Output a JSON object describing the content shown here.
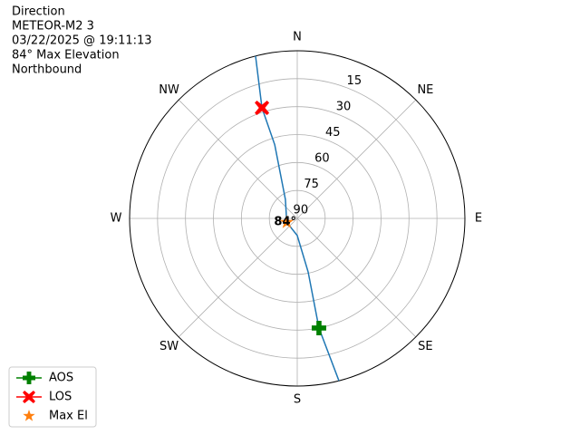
{
  "chart_data": {
    "type": "polar",
    "title": [
      "Direction",
      "METEOR-M2 3",
      "03/22/2025 @ 19:11:13",
      "84° Max Elevation",
      "Northbound"
    ],
    "xlim": [
      0,
      360
    ],
    "xticks": [
      {
        "value": 0,
        "label": "N"
      },
      {
        "value": 45,
        "label": "NE"
      },
      {
        "value": 90,
        "label": "E"
      },
      {
        "value": 135,
        "label": "SE"
      },
      {
        "value": 180,
        "label": "S"
      },
      {
        "value": 225,
        "label": "SW"
      },
      {
        "value": 270,
        "label": "W"
      },
      {
        "value": 315,
        "label": "NW"
      }
    ],
    "ylim": [
      90,
      0
    ],
    "yticks": [
      90,
      75,
      60,
      45,
      30,
      15
    ],
    "grid": true,
    "legend": "lower left",
    "series": [
      {
        "color": "#1f77b4",
        "marker": "none",
        "x": [
          165.6,
          168.8,
          168.5,
          180,
          250,
          328,
          343,
          342.3,
          345.6
        ],
        "values": [
          0,
          30,
          60.7,
          80.8,
          84,
          78,
          48.7,
          27.7,
          0
        ]
      },
      {
        "name": "AOS",
        "color": "#008000",
        "marker": "plus",
        "x": [
          168.8
        ],
        "values": [
          30
        ]
      },
      {
        "name": "LOS",
        "color": "#ff0000",
        "marker": "x",
        "x": [
          342.3
        ],
        "values": [
          27.7
        ]
      },
      {
        "name": "Max El",
        "color": "#ff7f0e",
        "marker": "star",
        "x": [
          250
        ],
        "values": [
          84
        ],
        "value_labels": [
          "84°"
        ]
      }
    ]
  }
}
